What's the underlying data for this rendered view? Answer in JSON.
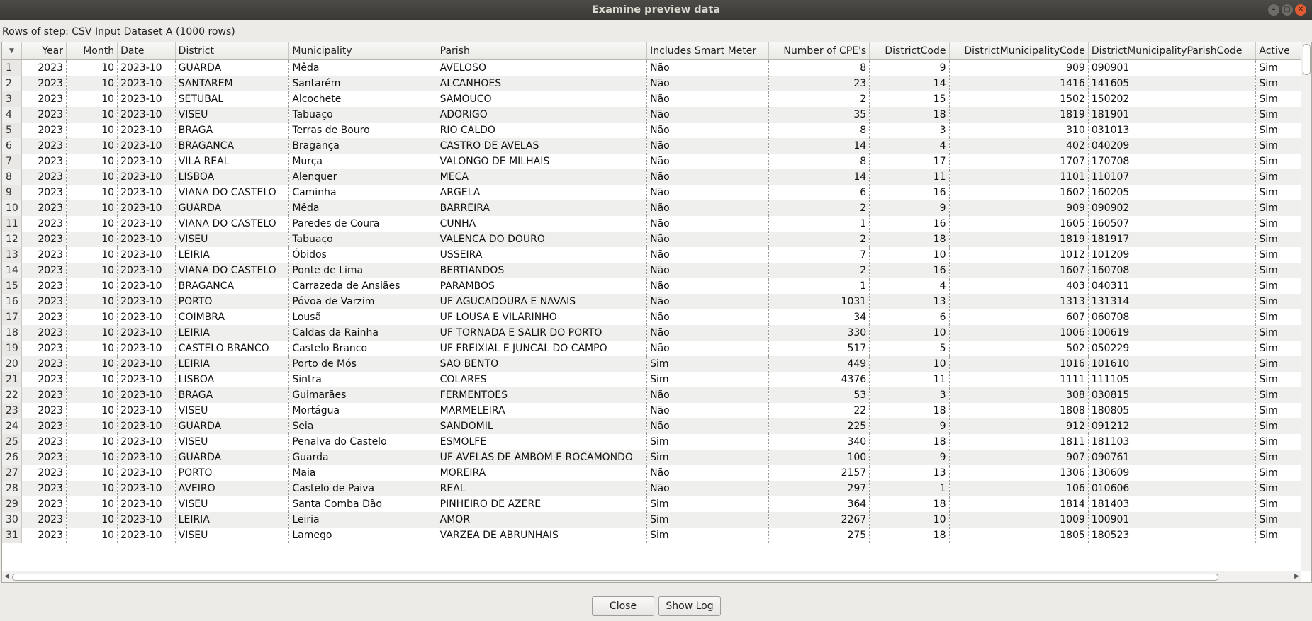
{
  "window": {
    "title": "Examine preview data"
  },
  "step_label": "Rows of step: CSV Input Dataset A (1000 rows)",
  "columns": [
    "Year",
    "Month",
    "Date",
    "District",
    "Municipality",
    "Parish",
    "Includes Smart Meter",
    "Number of CPE's",
    "DistrictCode",
    "DistrictMunicipalityCode",
    "DistrictMunicipalityParishCode",
    "Active"
  ],
  "rows": [
    [
      "1",
      "2023",
      "10",
      "2023-10",
      "GUARDA",
      "Mêda",
      "AVELOSO",
      "Não",
      "8",
      "9",
      "909",
      "090901",
      "Sim"
    ],
    [
      "2",
      "2023",
      "10",
      "2023-10",
      "SANTAREM",
      "Santarém",
      "ALCANHOES",
      "Não",
      "23",
      "14",
      "1416",
      "141605",
      "Sim"
    ],
    [
      "3",
      "2023",
      "10",
      "2023-10",
      "SETUBAL",
      "Alcochete",
      "SAMOUCO",
      "Não",
      "2",
      "15",
      "1502",
      "150202",
      "Sim"
    ],
    [
      "4",
      "2023",
      "10",
      "2023-10",
      "VISEU",
      "Tabuaço",
      "ADORIGO",
      "Não",
      "35",
      "18",
      "1819",
      "181901",
      "Sim"
    ],
    [
      "5",
      "2023",
      "10",
      "2023-10",
      "BRAGA",
      "Terras de Bouro",
      "RIO CALDO",
      "Não",
      "8",
      "3",
      "310",
      "031013",
      "Sim"
    ],
    [
      "6",
      "2023",
      "10",
      "2023-10",
      "BRAGANCA",
      "Bragança",
      "CASTRO DE AVELAS",
      "Não",
      "14",
      "4",
      "402",
      "040209",
      "Sim"
    ],
    [
      "7",
      "2023",
      "10",
      "2023-10",
      "VILA REAL",
      "Murça",
      "VALONGO DE MILHAIS",
      "Não",
      "8",
      "17",
      "1707",
      "170708",
      "Sim"
    ],
    [
      "8",
      "2023",
      "10",
      "2023-10",
      "LISBOA",
      "Alenquer",
      "MECA",
      "Não",
      "14",
      "11",
      "1101",
      "110107",
      "Sim"
    ],
    [
      "9",
      "2023",
      "10",
      "2023-10",
      "VIANA DO CASTELO",
      "Caminha",
      "ARGELA",
      "Não",
      "6",
      "16",
      "1602",
      "160205",
      "Sim"
    ],
    [
      "10",
      "2023",
      "10",
      "2023-10",
      "GUARDA",
      "Mêda",
      "BARREIRA",
      "Não",
      "2",
      "9",
      "909",
      "090902",
      "Sim"
    ],
    [
      "11",
      "2023",
      "10",
      "2023-10",
      "VIANA DO CASTELO",
      "Paredes de Coura",
      "CUNHA",
      "Não",
      "1",
      "16",
      "1605",
      "160507",
      "Sim"
    ],
    [
      "12",
      "2023",
      "10",
      "2023-10",
      "VISEU",
      "Tabuaço",
      "VALENCA DO DOURO",
      "Não",
      "2",
      "18",
      "1819",
      "181917",
      "Sim"
    ],
    [
      "13",
      "2023",
      "10",
      "2023-10",
      "LEIRIA",
      "Óbidos",
      "USSEIRA",
      "Não",
      "7",
      "10",
      "1012",
      "101209",
      "Sim"
    ],
    [
      "14",
      "2023",
      "10",
      "2023-10",
      "VIANA DO CASTELO",
      "Ponte de Lima",
      "BERTIANDOS",
      "Não",
      "2",
      "16",
      "1607",
      "160708",
      "Sim"
    ],
    [
      "15",
      "2023",
      "10",
      "2023-10",
      "BRAGANCA",
      "Carrazeda de Ansiães",
      "PARAMBOS",
      "Não",
      "1",
      "4",
      "403",
      "040311",
      "Sim"
    ],
    [
      "16",
      "2023",
      "10",
      "2023-10",
      "PORTO",
      "Póvoa de Varzim",
      "UF AGUCADOURA E NAVAIS",
      "Não",
      "1031",
      "13",
      "1313",
      "131314",
      "Sim"
    ],
    [
      "17",
      "2023",
      "10",
      "2023-10",
      "COIMBRA",
      "Lousã",
      "UF LOUSA E VILARINHO",
      "Não",
      "34",
      "6",
      "607",
      "060708",
      "Sim"
    ],
    [
      "18",
      "2023",
      "10",
      "2023-10",
      "LEIRIA",
      "Caldas da Rainha",
      "UF TORNADA E SALIR DO PORTO",
      "Não",
      "330",
      "10",
      "1006",
      "100619",
      "Sim"
    ],
    [
      "19",
      "2023",
      "10",
      "2023-10",
      "CASTELO BRANCO",
      "Castelo Branco",
      "UF FREIXIAL E JUNCAL DO CAMPO",
      "Não",
      "517",
      "5",
      "502",
      "050229",
      "Sim"
    ],
    [
      "20",
      "2023",
      "10",
      "2023-10",
      "LEIRIA",
      "Porto de Mós",
      "SAO BENTO",
      "Sim",
      "449",
      "10",
      "1016",
      "101610",
      "Sim"
    ],
    [
      "21",
      "2023",
      "10",
      "2023-10",
      "LISBOA",
      "Sintra",
      "COLARES",
      "Sim",
      "4376",
      "11",
      "1111",
      "111105",
      "Sim"
    ],
    [
      "22",
      "2023",
      "10",
      "2023-10",
      "BRAGA",
      "Guimarães",
      "FERMENTOES",
      "Não",
      "53",
      "3",
      "308",
      "030815",
      "Sim"
    ],
    [
      "23",
      "2023",
      "10",
      "2023-10",
      "VISEU",
      "Mortágua",
      "MARMELEIRA",
      "Não",
      "22",
      "18",
      "1808",
      "180805",
      "Sim"
    ],
    [
      "24",
      "2023",
      "10",
      "2023-10",
      "GUARDA",
      "Seia",
      "SANDOMIL",
      "Não",
      "225",
      "9",
      "912",
      "091212",
      "Sim"
    ],
    [
      "25",
      "2023",
      "10",
      "2023-10",
      "VISEU",
      "Penalva do Castelo",
      "ESMOLFE",
      "Sim",
      "340",
      "18",
      "1811",
      "181103",
      "Sim"
    ],
    [
      "26",
      "2023",
      "10",
      "2023-10",
      "GUARDA",
      "Guarda",
      "UF AVELAS DE AMBOM E ROCAMONDO",
      "Sim",
      "100",
      "9",
      "907",
      "090761",
      "Sim"
    ],
    [
      "27",
      "2023",
      "10",
      "2023-10",
      "PORTO",
      "Maia",
      "MOREIRA",
      "Não",
      "2157",
      "13",
      "1306",
      "130609",
      "Sim"
    ],
    [
      "28",
      "2023",
      "10",
      "2023-10",
      "AVEIRO",
      "Castelo de Paiva",
      "REAL",
      "Não",
      "297",
      "1",
      "106",
      "010606",
      "Sim"
    ],
    [
      "29",
      "2023",
      "10",
      "2023-10",
      "VISEU",
      "Santa Comba Dão",
      "PINHEIRO DE AZERE",
      "Sim",
      "364",
      "18",
      "1814",
      "181403",
      "Sim"
    ],
    [
      "30",
      "2023",
      "10",
      "2023-10",
      "LEIRIA",
      "Leiria",
      "AMOR",
      "Sim",
      "2267",
      "10",
      "1009",
      "100901",
      "Sim"
    ],
    [
      "31",
      "2023",
      "10",
      "2023-10",
      "VISEU",
      "Lamego",
      "VARZEA DE ABRUNHAIS",
      "Sim",
      "275",
      "18",
      "1805",
      "180523",
      "Sim"
    ]
  ],
  "buttons": {
    "close": "Close",
    "show_log": "Show Log"
  }
}
